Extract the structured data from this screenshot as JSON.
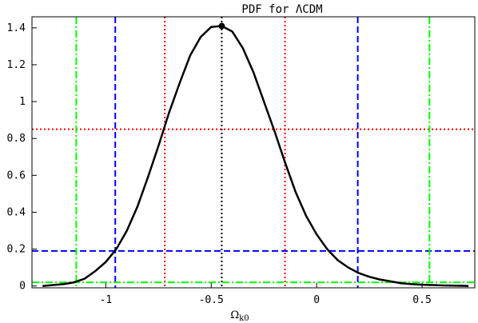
{
  "chart_data": {
    "type": "line",
    "title": "PDF for ΛCDM",
    "xlabel": "Ω",
    "xlabel_sub": "k0",
    "ylabel": "",
    "xlim": [
      -1.35,
      0.75
    ],
    "ylim": [
      -0.01,
      1.46
    ],
    "x_ticks": [
      -1,
      -0.5,
      0,
      0.5
    ],
    "x_tick_labels": [
      "-1",
      "-0.5",
      "0",
      "0.5"
    ],
    "y_ticks": [
      0,
      0.2,
      0.4,
      0.6,
      0.8,
      1,
      1.2,
      1.4
    ],
    "y_tick_labels": [
      "0",
      "0.2",
      "0.4",
      "0.6",
      "0.8",
      "1",
      "1.2",
      "1.4"
    ],
    "grid": false,
    "series": [
      {
        "style": "solid",
        "color": "#000000",
        "x": [
          -1.3,
          -1.25,
          -1.2,
          -1.15,
          -1.1,
          -1.05,
          -1.0,
          -0.95,
          -0.9,
          -0.85,
          -0.8,
          -0.75,
          -0.7,
          -0.65,
          -0.6,
          -0.55,
          -0.5,
          -0.45,
          -0.4,
          -0.35,
          -0.3,
          -0.25,
          -0.2,
          -0.15,
          -0.1,
          -0.05,
          0.0,
          0.05,
          0.1,
          0.15,
          0.2,
          0.25,
          0.3,
          0.35,
          0.4,
          0.45,
          0.5,
          0.55,
          0.6,
          0.65,
          0.7,
          0.72
        ],
        "y": [
          0.0,
          0.005,
          0.01,
          0.02,
          0.04,
          0.08,
          0.13,
          0.2,
          0.3,
          0.43,
          0.59,
          0.76,
          0.94,
          1.1,
          1.25,
          1.35,
          1.405,
          1.41,
          1.38,
          1.29,
          1.16,
          1.0,
          0.84,
          0.67,
          0.51,
          0.38,
          0.28,
          0.2,
          0.14,
          0.1,
          0.07,
          0.05,
          0.035,
          0.025,
          0.015,
          0.01,
          0.007,
          0.005,
          0.003,
          0.002,
          0.001,
          0.0
        ]
      }
    ],
    "peak": {
      "x": -0.45,
      "y": 1.41
    },
    "reference_lines": [
      {
        "orientation": "vertical",
        "value": -0.45,
        "color": "#000000",
        "style": "dotted"
      },
      {
        "orientation": "vertical",
        "value": -0.72,
        "color": "#ff0000",
        "style": "dotted"
      },
      {
        "orientation": "vertical",
        "value": -0.15,
        "color": "#ff0000",
        "style": "dotted"
      },
      {
        "orientation": "horizontal",
        "value": 0.85,
        "color": "#ff0000",
        "style": "dotted"
      },
      {
        "orientation": "vertical",
        "value": -0.955,
        "color": "#0000ff",
        "style": "dashed"
      },
      {
        "orientation": "vertical",
        "value": 0.195,
        "color": "#0000ff",
        "style": "dashed"
      },
      {
        "orientation": "horizontal",
        "value": 0.19,
        "color": "#0000ff",
        "style": "dashed"
      },
      {
        "orientation": "vertical",
        "value": -1.14,
        "color": "#00ff00",
        "style": "dashdot"
      },
      {
        "orientation": "vertical",
        "value": 0.535,
        "color": "#00ff00",
        "style": "dashdot"
      },
      {
        "orientation": "horizontal",
        "value": 0.02,
        "color": "#00ff00",
        "style": "dashdot"
      }
    ]
  }
}
